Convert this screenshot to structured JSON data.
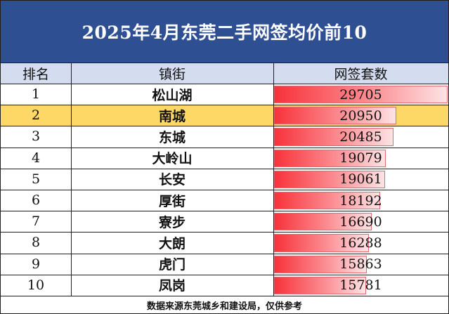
{
  "title": "2025年4月东莞二手网签均价前10",
  "columns": {
    "rank": "排名",
    "street": "镇街",
    "count": "网签套数"
  },
  "highlight_color": "#fdd867",
  "title_bg_color": "#2f4f93",
  "bar_color": "#f8323a",
  "footer": "数据来源东莞城乡和建设局，仅供参考",
  "chart_data": {
    "type": "table",
    "title": "2025年4月东莞二手网签均价前10",
    "headers": [
      "排名",
      "镇街",
      "网签套数"
    ],
    "rows": [
      {
        "rank": "1",
        "street": "松山湖",
        "value": 29705,
        "highlight": false
      },
      {
        "rank": "2",
        "street": "南城",
        "value": 20950,
        "highlight": true
      },
      {
        "rank": "3",
        "street": "东城",
        "value": 20485,
        "highlight": false
      },
      {
        "rank": "4",
        "street": "大岭山",
        "value": 19079,
        "highlight": false
      },
      {
        "rank": "5",
        "street": "长安",
        "value": 19061,
        "highlight": false
      },
      {
        "rank": "6",
        "street": "厚街",
        "value": 18192,
        "highlight": false
      },
      {
        "rank": "7",
        "street": "寮步",
        "value": 16690,
        "highlight": false
      },
      {
        "rank": "8",
        "street": "大朗",
        "value": 16288,
        "highlight": false
      },
      {
        "rank": "9",
        "street": "虎门",
        "value": 15863,
        "highlight": false
      },
      {
        "rank": "10",
        "street": "凤岗",
        "value": 15781,
        "highlight": false
      }
    ],
    "data_bars": {
      "column": "网签套数",
      "min": 0,
      "max": 29705
    }
  }
}
